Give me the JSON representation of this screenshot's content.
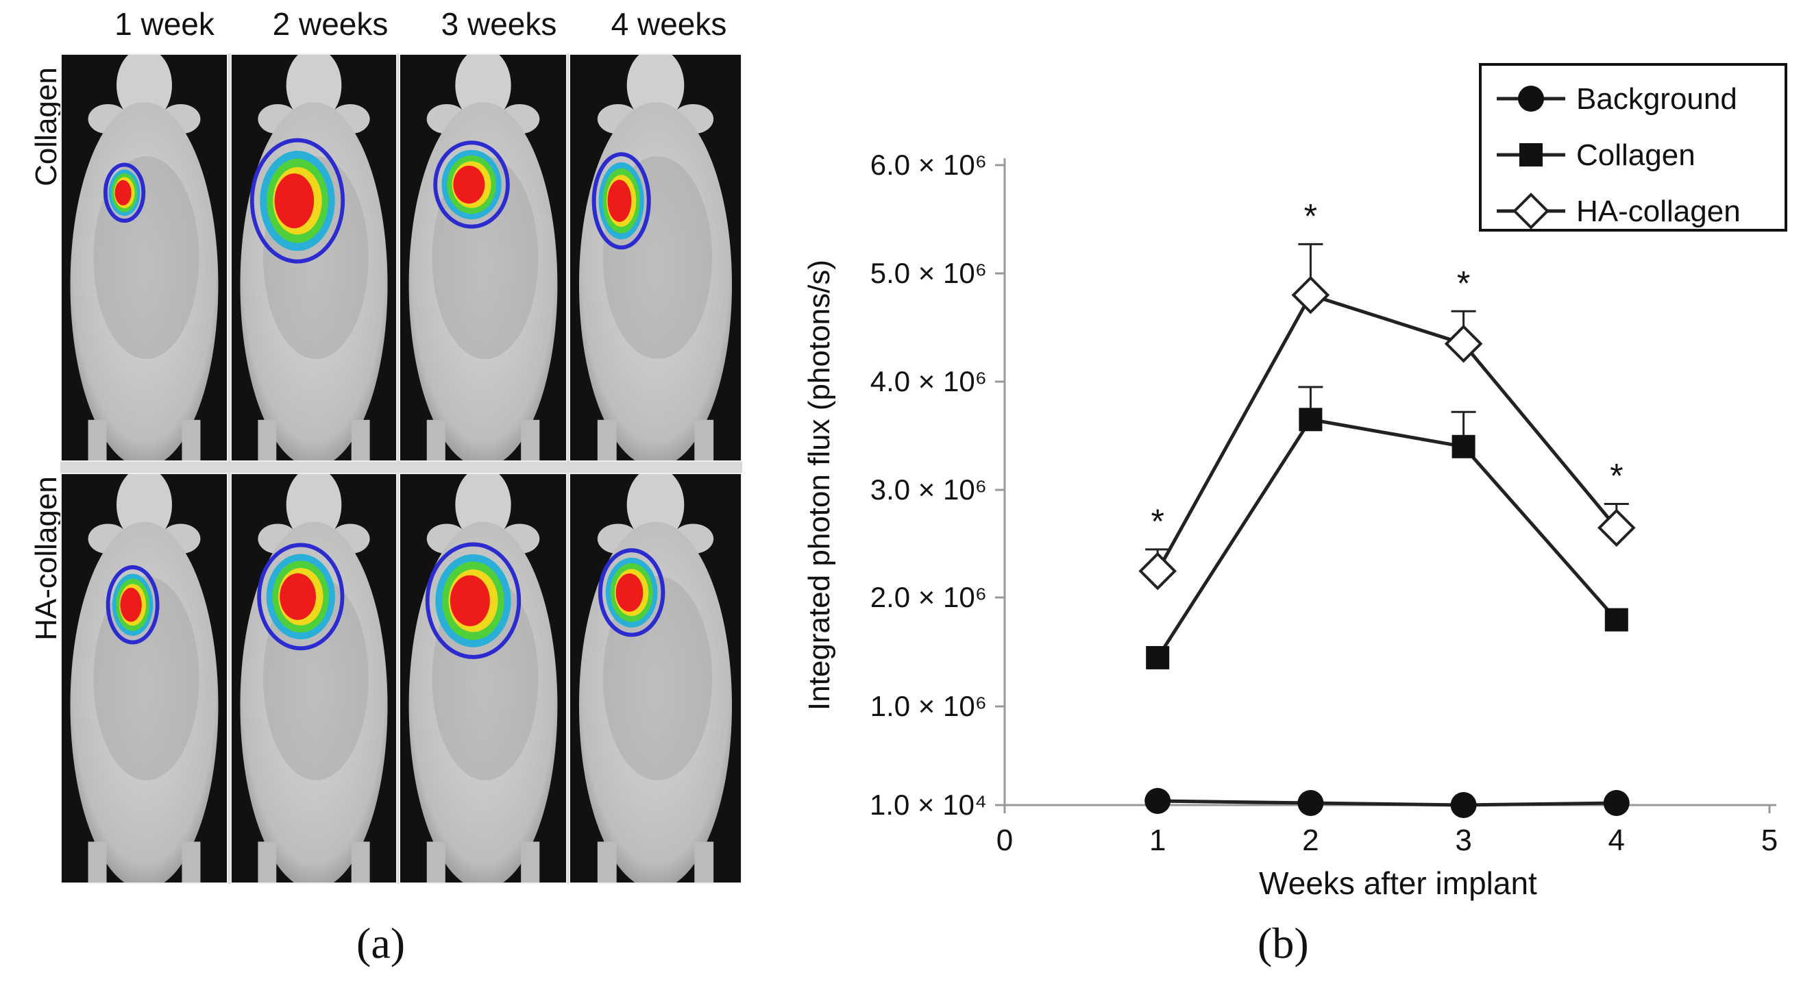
{
  "panel_a": {
    "caption": "(a)",
    "columns": [
      "1 week",
      "2 weeks",
      "3 weeks",
      "4 weeks"
    ],
    "rows": [
      "Collagen",
      "HA-collagen"
    ]
  },
  "panel_b": {
    "caption": "(b)"
  },
  "chart_data": {
    "type": "line",
    "xlabel": "Weeks after implant",
    "ylabel": "Integrated photon flux (photons/s)",
    "xlim": [
      0,
      5
    ],
    "x_ticks": [
      "0",
      "1",
      "2",
      "3",
      "4",
      "5"
    ],
    "y_tick_values": [
      0.01,
      1,
      2,
      3,
      4,
      5,
      6
    ],
    "y_tick_labels": [
      "1.0 × 10⁴",
      "1.0 × 10⁶",
      "2.0 × 10⁶",
      "3.0 × 10⁶",
      "4.0 × 10⁶",
      "5.0 × 10⁶",
      "6.0 × 10⁶"
    ],
    "ylim": [
      0,
      6
    ],
    "y_unit": "×10⁶ photons/s",
    "x": [
      1,
      2,
      3,
      4
    ],
    "series": [
      {
        "name": "Background",
        "marker": "filled-circle",
        "values": [
          0.05,
          0.03,
          0.01,
          0.03
        ],
        "errors": [
          0,
          0,
          0,
          0
        ]
      },
      {
        "name": "Collagen",
        "marker": "filled-square",
        "values": [
          1.45,
          3.65,
          3.4,
          1.8
        ],
        "errors": [
          0,
          0.3,
          0.32,
          0
        ]
      },
      {
        "name": "HA-collagen",
        "marker": "open-diamond",
        "values": [
          2.25,
          4.8,
          4.35,
          2.65
        ],
        "errors": [
          0.2,
          0.47,
          0.3,
          0.22
        ]
      }
    ],
    "significance_marks": [
      {
        "x": 1,
        "label": "*"
      },
      {
        "x": 2,
        "label": "*"
      },
      {
        "x": 3,
        "label": "*"
      },
      {
        "x": 4,
        "label": "*"
      }
    ],
    "legend": "top-right",
    "colors": {
      "line": "#222222",
      "axis": "#999999"
    }
  }
}
